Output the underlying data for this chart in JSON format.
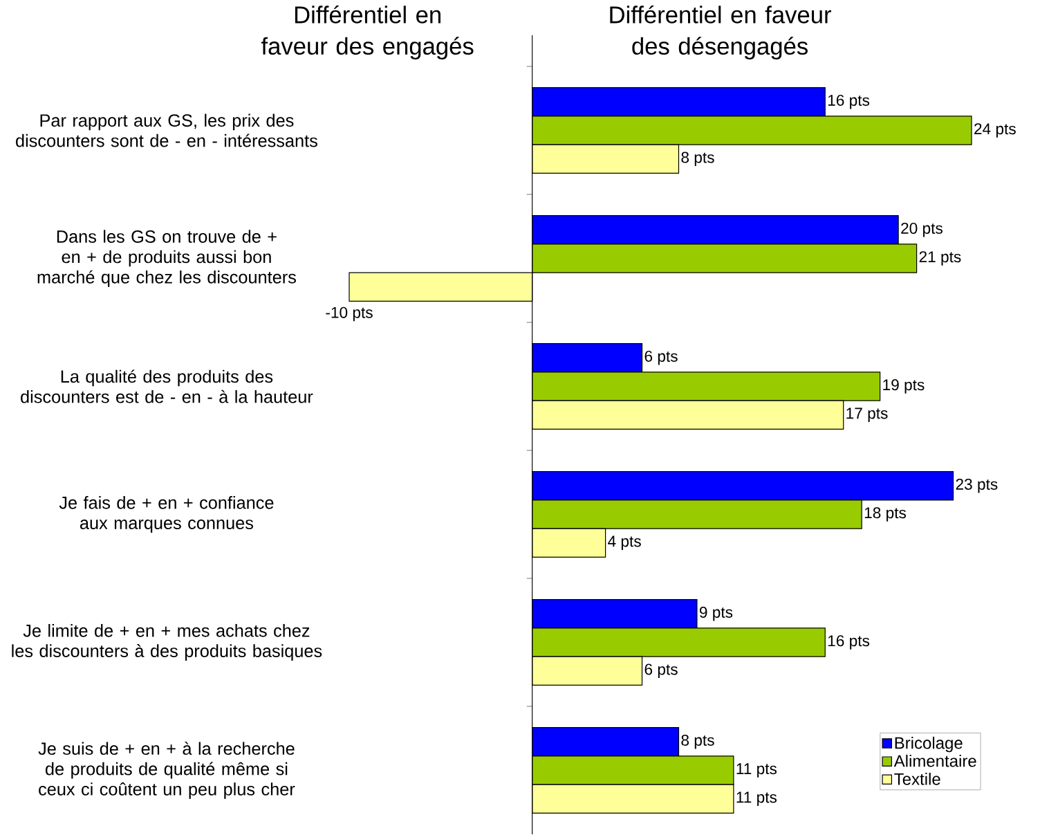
{
  "chart_data": {
    "type": "bar",
    "orientation": "horizontal",
    "categories": [
      "Par rapport aux GS, les prix des discounters sont de - en - intéressants",
      "Dans les GS on trouve de + en + de produits aussi bon marché que chez les discounters",
      "La qualité des produits des discounters est de - en - à la hauteur",
      "Je fais de + en + confiance aux marques connues",
      "Je limite de + en + mes achats chez les discounters à des produits basiques",
      "Je suis de + en + à la recherche de produits de qualité même si ceux ci coûtent un peu plus cher"
    ],
    "series": [
      {
        "name": "Bricolage",
        "color": "#0000ff",
        "values": [
          16,
          20,
          6,
          23,
          9,
          8
        ],
        "value_labels": [
          "16 pts",
          "20 pts",
          "6 pts",
          "23 pts",
          "9 pts",
          "8 pts"
        ]
      },
      {
        "name": "Alimentaire",
        "color": "#99cc00",
        "values": [
          24,
          21,
          19,
          18,
          16,
          11
        ],
        "value_labels": [
          "24 pts",
          "21 pts",
          "19 pts",
          "18 pts",
          "16 pts",
          "11 pts"
        ]
      },
      {
        "name": "Textile",
        "color": "#ffff99",
        "values": [
          8,
          -10,
          17,
          4,
          6,
          11
        ],
        "value_labels": [
          "8 pts",
          "-10 pts",
          "17 pts",
          "4 pts",
          "6 pts",
          "11 pts"
        ]
      }
    ],
    "annotations": [
      "Différentiel en faveur des engagés",
      "Différentiel en faveur des désengagés"
    ],
    "legend": "bottom right"
  }
}
